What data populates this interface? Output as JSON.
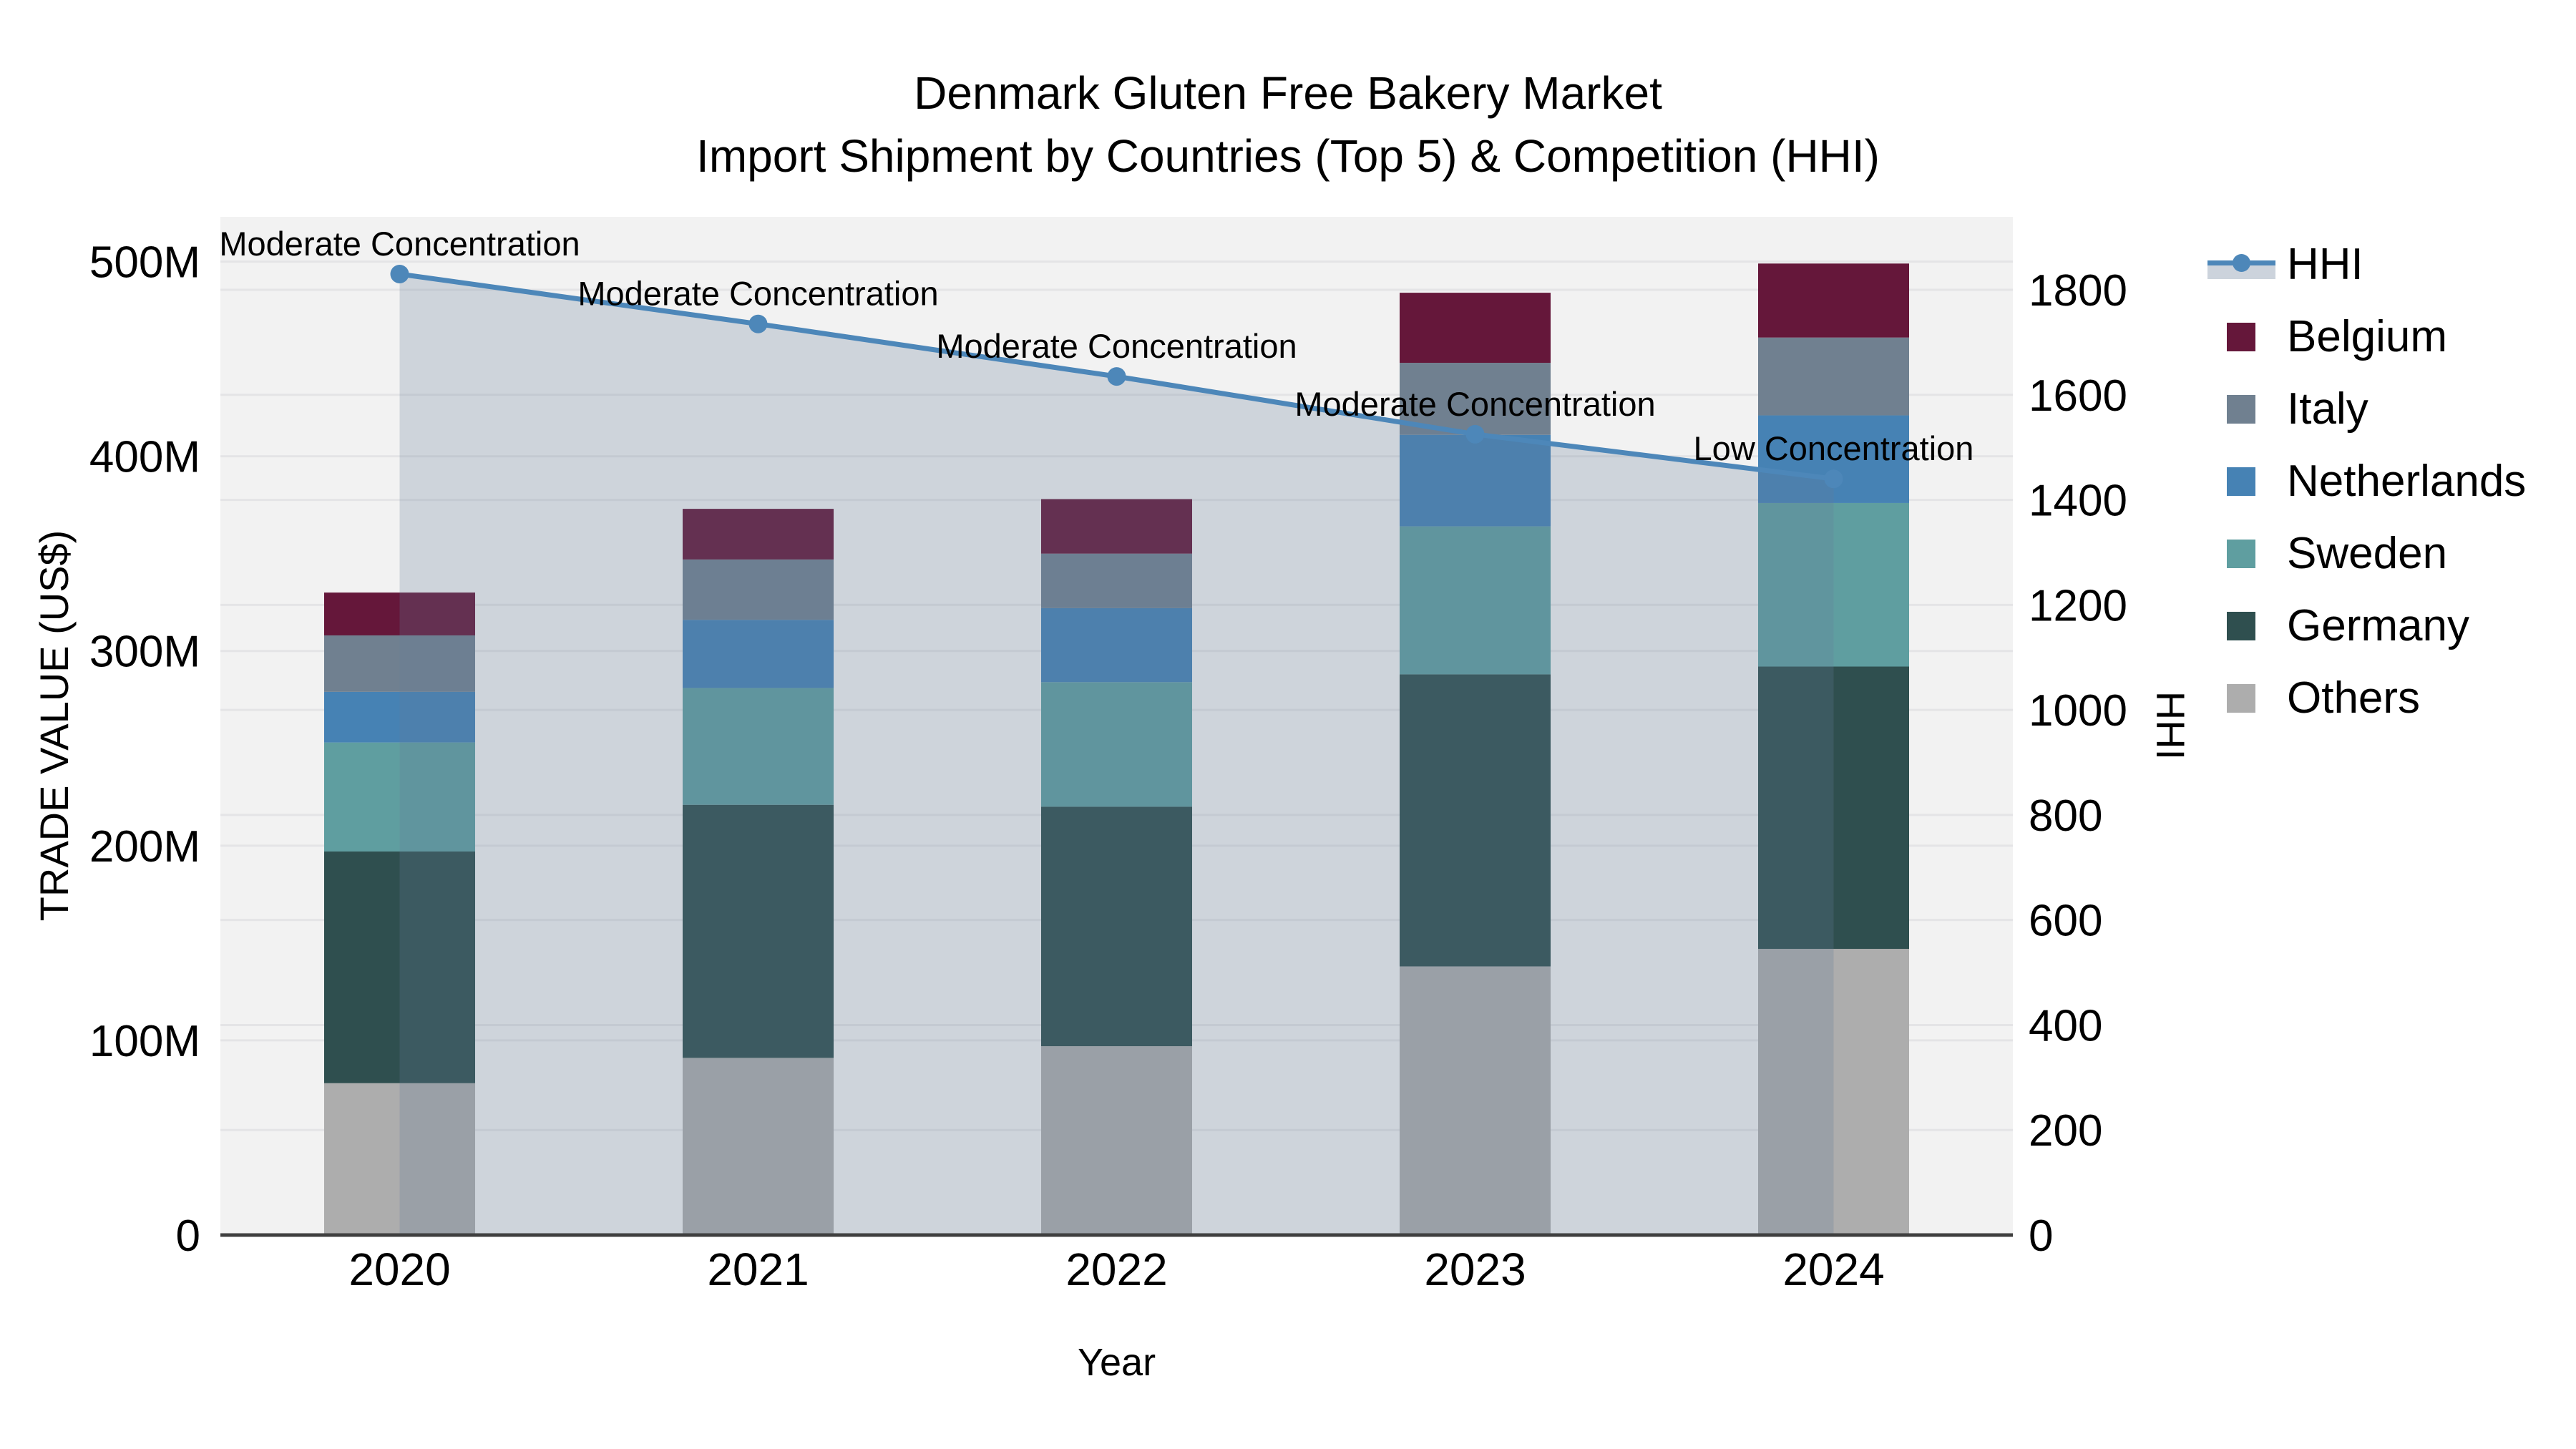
{
  "header": {
    "title_line1": "Denmark Gluten Free Bakery Market",
    "title_line2": "Import Shipment by Countries (Top 5) & Competition (HHI)"
  },
  "chart_data": {
    "type": "combo: stacked-bar + line-area",
    "categories": [
      "2020",
      "2021",
      "2022",
      "2023",
      "2024"
    ],
    "xlabel": "Year",
    "left_axis": {
      "label": "TRADE VALUE (US$)",
      "tick_labels": [
        "0",
        "100M",
        "200M",
        "300M",
        "400M",
        "500M"
      ],
      "tick_values": [
        0,
        100,
        200,
        300,
        400,
        500
      ],
      "range": [
        0,
        523
      ],
      "units": "millions USD"
    },
    "right_axis": {
      "label": "HHI",
      "tick_labels": [
        "0",
        "200",
        "400",
        "600",
        "800",
        "1000",
        "1200",
        "1400",
        "1600",
        "1800"
      ],
      "tick_values": [
        0,
        200,
        400,
        600,
        800,
        1000,
        1200,
        1400,
        1600,
        1800
      ],
      "range": [
        0,
        1939
      ]
    },
    "series": [
      {
        "name": "Others",
        "color": "#adadad",
        "values": [
          78,
          91,
          97,
          138,
          147
        ]
      },
      {
        "name": "Germany",
        "color": "#2f4f4f",
        "values": [
          119,
          130,
          123,
          150,
          145
        ]
      },
      {
        "name": "Sweden",
        "color": "#5f9ea0",
        "values": [
          56,
          60,
          64,
          76,
          84
        ]
      },
      {
        "name": "Netherlands",
        "color": "#4682b4",
        "values": [
          26,
          35,
          38,
          47,
          45
        ]
      },
      {
        "name": "Italy",
        "color": "#708090",
        "values": [
          29,
          31,
          28,
          37,
          40
        ]
      },
      {
        "name": "Belgium",
        "color": "#65173a",
        "values": [
          22,
          26,
          28,
          36,
          38
        ]
      }
    ],
    "stack_totals": [
      330,
      373,
      378,
      484,
      499
    ],
    "hhi": {
      "name": "HHI",
      "color": "#4d87b9",
      "area_color": "rgba(100,125,150,0.25)",
      "values": [
        1830,
        1735,
        1635,
        1525,
        1440
      ],
      "annotations": [
        "Moderate Concentration",
        "Moderate Concentration",
        "Moderate Concentration",
        "Moderate Concentration",
        "Low Concentration"
      ]
    },
    "legend": {
      "items": [
        {
          "label": "HHI",
          "type": "line",
          "color": "#4d87b9",
          "band_color": "#ccd3dc"
        },
        {
          "label": "Belgium",
          "type": "box",
          "color": "#65173a"
        },
        {
          "label": "Italy",
          "type": "box",
          "color": "#708090"
        },
        {
          "label": "Netherlands",
          "type": "box",
          "color": "#4682b4"
        },
        {
          "label": "Sweden",
          "type": "box",
          "color": "#5f9ea0"
        },
        {
          "label": "Germany",
          "type": "box",
          "color": "#2f4f4f"
        },
        {
          "label": "Others",
          "type": "box",
          "color": "#adadad"
        }
      ]
    },
    "style": {
      "plot_bg": "#f2f2f2",
      "grid_color": "#e4e4e6",
      "axis_line_color": "#3f3f3f",
      "text_color": "#000000"
    }
  }
}
